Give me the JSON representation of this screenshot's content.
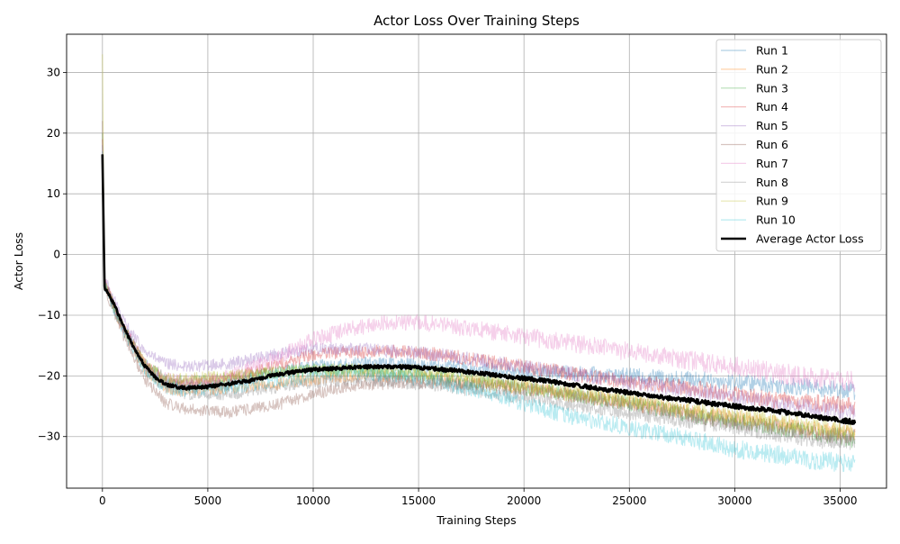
{
  "chart_data": {
    "type": "line",
    "title": "Actor Loss Over Training Steps",
    "xlabel": "Training Steps",
    "ylabel": "Actor Loss",
    "xlim": [
      -1700,
      37200
    ],
    "ylim": [
      -38.5,
      36.3
    ],
    "xticks": [
      0,
      5000,
      10000,
      15000,
      20000,
      25000,
      30000,
      35000
    ],
    "xtick_labels": [
      "0",
      "5000",
      "10000",
      "15000",
      "20000",
      "25000",
      "30000",
      "35000"
    ],
    "yticks": [
      -30,
      -20,
      -10,
      0,
      10,
      20,
      30
    ],
    "ytick_labels": [
      "−30",
      "−20",
      "−10",
      "0",
      "10",
      "20",
      "30"
    ],
    "grid": true,
    "legend_position": "top-right",
    "series": [
      {
        "name": "Run 1",
        "color": "#1f77b4",
        "alpha": 0.35,
        "noise": 0.9,
        "x": [
          0,
          100,
          500,
          1000,
          2000,
          3000,
          4000,
          6000,
          8000,
          10000,
          12000,
          14000,
          16000,
          18000,
          20000,
          22000,
          25000,
          28000,
          30000,
          32000,
          34000,
          35700
        ],
        "y": [
          16,
          -4.5,
          -8,
          -12,
          -18,
          -21,
          -22,
          -21.5,
          -19.5,
          -18.5,
          -18,
          -18,
          -18.5,
          -19,
          -19.5,
          -19.5,
          -20,
          -20.5,
          -21,
          -21.5,
          -22,
          -22.5
        ]
      },
      {
        "name": "Run 2",
        "color": "#ff7f0e",
        "alpha": 0.35,
        "noise": 0.9,
        "x": [
          0,
          100,
          500,
          1000,
          2000,
          3000,
          4000,
          6000,
          8000,
          10000,
          12000,
          14000,
          16000,
          18000,
          20000,
          22000,
          25000,
          28000,
          30000,
          32000,
          34000,
          35700
        ],
        "y": [
          17,
          -5,
          -8.5,
          -12.5,
          -19,
          -22,
          -22.5,
          -22,
          -21.5,
          -20.5,
          -20,
          -20,
          -20.5,
          -21.5,
          -22,
          -23,
          -24.5,
          -26,
          -27,
          -28,
          -29,
          -29.5
        ]
      },
      {
        "name": "Run 3",
        "color": "#2ca02c",
        "alpha": 0.35,
        "noise": 0.9,
        "x": [
          0,
          100,
          500,
          1000,
          2000,
          3000,
          4000,
          6000,
          8000,
          10000,
          12000,
          14000,
          16000,
          18000,
          20000,
          22000,
          25000,
          28000,
          30000,
          32000,
          34000,
          35700
        ],
        "y": [
          20,
          -4.5,
          -8,
          -12,
          -18,
          -20.5,
          -21,
          -20.5,
          -19.5,
          -19,
          -19,
          -19.5,
          -20,
          -21,
          -22,
          -23,
          -24.5,
          -26.5,
          -27.5,
          -28.5,
          -29.5,
          -30.5
        ]
      },
      {
        "name": "Run 4",
        "color": "#d62728",
        "alpha": 0.35,
        "noise": 0.9,
        "x": [
          0,
          100,
          500,
          1000,
          2000,
          3000,
          4000,
          6000,
          8000,
          10000,
          12000,
          14000,
          16000,
          18000,
          20000,
          22000,
          25000,
          28000,
          30000,
          32000,
          34000,
          35700
        ],
        "y": [
          19,
          -4.5,
          -8,
          -12,
          -18,
          -21,
          -21.5,
          -20.5,
          -18.5,
          -16.5,
          -16,
          -16,
          -16.5,
          -17.5,
          -18.5,
          -19.5,
          -21,
          -22,
          -23,
          -24,
          -24.5,
          -25
        ]
      },
      {
        "name": "Run 5",
        "color": "#9467bd",
        "alpha": 0.35,
        "noise": 0.9,
        "x": [
          0,
          100,
          500,
          1000,
          2000,
          3000,
          4000,
          6000,
          8000,
          10000,
          12000,
          14000,
          16000,
          18000,
          20000,
          22000,
          25000,
          28000,
          30000,
          32000,
          34000,
          35700
        ],
        "y": [
          18,
          -4,
          -7,
          -11,
          -16,
          -18,
          -18.5,
          -18,
          -16.5,
          -15.5,
          -15.5,
          -16,
          -16.5,
          -17.5,
          -18.5,
          -19.5,
          -21,
          -22.5,
          -23.5,
          -24.5,
          -25.5,
          -26
        ]
      },
      {
        "name": "Run 6",
        "color": "#8c564b",
        "alpha": 0.35,
        "noise": 0.9,
        "x": [
          0,
          100,
          500,
          1000,
          2000,
          3000,
          4000,
          6000,
          8000,
          10000,
          12000,
          14000,
          16000,
          18000,
          20000,
          22000,
          25000,
          28000,
          30000,
          32000,
          34000,
          35700
        ],
        "y": [
          22,
          -5.5,
          -9,
          -13.5,
          -20.5,
          -24.5,
          -25.5,
          -26,
          -25,
          -23,
          -21.5,
          -21,
          -21,
          -21.5,
          -22,
          -23,
          -24.5,
          -26.5,
          -27.5,
          -28.5,
          -29.5,
          -30
        ]
      },
      {
        "name": "Run 7",
        "color": "#e377c2",
        "alpha": 0.35,
        "noise": 1.1,
        "x": [
          0,
          100,
          500,
          1000,
          2000,
          3000,
          4000,
          6000,
          8000,
          10000,
          12000,
          14000,
          16000,
          18000,
          20000,
          22000,
          25000,
          28000,
          30000,
          32000,
          34000,
          35700
        ],
        "y": [
          17,
          -4.5,
          -8,
          -12,
          -18,
          -20.5,
          -21,
          -20,
          -17.5,
          -14,
          -12,
          -11,
          -11.5,
          -12.5,
          -13.5,
          -14.5,
          -16,
          -17.5,
          -18.5,
          -19.5,
          -20.5,
          -21
        ]
      },
      {
        "name": "Run 8",
        "color": "#7f7f7f",
        "alpha": 0.35,
        "noise": 0.9,
        "x": [
          0,
          100,
          500,
          1000,
          2000,
          3000,
          4000,
          6000,
          8000,
          10000,
          12000,
          14000,
          16000,
          18000,
          20000,
          22000,
          25000,
          28000,
          30000,
          32000,
          34000,
          35700
        ],
        "y": [
          18,
          -5,
          -8.5,
          -12.5,
          -19,
          -22,
          -23,
          -23,
          -22,
          -21,
          -20.5,
          -21,
          -21.5,
          -22.5,
          -23.5,
          -24.5,
          -26,
          -27.5,
          -28.5,
          -29.5,
          -30.5,
          -31
        ]
      },
      {
        "name": "Run 9",
        "color": "#bcbd22",
        "alpha": 0.35,
        "noise": 0.9,
        "x": [
          0,
          100,
          500,
          1000,
          2000,
          3000,
          4000,
          6000,
          8000,
          10000,
          12000,
          14000,
          16000,
          18000,
          20000,
          22000,
          25000,
          28000,
          30000,
          32000,
          34000,
          35700
        ],
        "y": [
          33,
          -4.5,
          -8,
          -12,
          -18,
          -20.5,
          -20.5,
          -20,
          -19.5,
          -19,
          -19,
          -19,
          -19.5,
          -20.5,
          -21.5,
          -22.5,
          -24,
          -25.5,
          -26.5,
          -27.5,
          -28.5,
          -29
        ]
      },
      {
        "name": "Run 10",
        "color": "#17becf",
        "alpha": 0.3,
        "noise": 1.0,
        "x": [
          0,
          100,
          500,
          1000,
          2000,
          3000,
          4000,
          6000,
          8000,
          10000,
          12000,
          14000,
          16000,
          18000,
          20000,
          22000,
          25000,
          28000,
          30000,
          32000,
          34000,
          35700
        ],
        "y": [
          17,
          -5,
          -8.5,
          -12.5,
          -19,
          -22,
          -22.5,
          -22,
          -21,
          -20,
          -19.5,
          -20,
          -21,
          -22.5,
          -24.5,
          -26.5,
          -28.5,
          -30.5,
          -32,
          -33,
          -34,
          -34.5
        ]
      },
      {
        "name": "Average Actor Loss",
        "color": "#000000",
        "alpha": 1.0,
        "noise": 0.25,
        "width": 2.6,
        "x": [
          0,
          100,
          500,
          1000,
          1500,
          2000,
          2500,
          3000,
          3500,
          4000,
          5000,
          6000,
          7000,
          8000,
          9000,
          10000,
          11000,
          12000,
          13000,
          14000,
          15000,
          16000,
          17000,
          18000,
          19000,
          20000,
          21000,
          22000,
          23000,
          24000,
          25000,
          26000,
          27000,
          28000,
          29000,
          30000,
          31000,
          32000,
          33000,
          34000,
          35000,
          35700
        ],
        "y": [
          16.5,
          -5.5,
          -7.8,
          -11.8,
          -15.5,
          -18.3,
          -20.2,
          -21.4,
          -21.8,
          -22,
          -21.8,
          -21.3,
          -20.8,
          -20,
          -19.4,
          -19,
          -18.8,
          -18.6,
          -18.5,
          -18.5,
          -18.6,
          -18.9,
          -19.2,
          -19.6,
          -20,
          -20.4,
          -20.8,
          -21.3,
          -21.8,
          -22.3,
          -22.8,
          -23.3,
          -23.7,
          -24.1,
          -24.6,
          -25,
          -25.4,
          -25.8,
          -26.3,
          -26.8,
          -27.3,
          -27.6
        ]
      }
    ]
  }
}
